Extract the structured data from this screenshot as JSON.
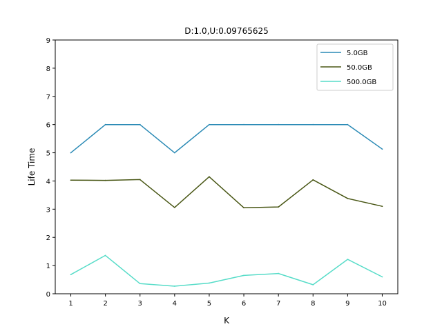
{
  "chart_data": {
    "type": "line",
    "title": "D:1.0,U:0.09765625",
    "xlabel": "K",
    "ylabel": "Life Time",
    "x": [
      1,
      2,
      3,
      4,
      5,
      6,
      7,
      8,
      9,
      10
    ],
    "xlim": [
      0.55,
      10.45
    ],
    "ylim": [
      0,
      9
    ],
    "yticks": [
      0,
      1,
      2,
      3,
      4,
      5,
      6,
      7,
      8,
      9
    ],
    "grid": false,
    "legend_position": "top-right",
    "series": [
      {
        "name": "5.0GB",
        "color": "#2a8ab5",
        "values": [
          5.0,
          6.0,
          6.0,
          5.0,
          6.0,
          6.0,
          6.0,
          6.0,
          6.0,
          5.13
        ]
      },
      {
        "name": "50.0GB",
        "color": "#485614",
        "values": [
          4.03,
          4.02,
          4.05,
          3.06,
          4.15,
          3.05,
          3.08,
          4.04,
          3.38,
          3.1
        ]
      },
      {
        "name": "500.0GB",
        "color": "#56dcc8",
        "values": [
          0.68,
          1.36,
          0.36,
          0.27,
          0.38,
          0.65,
          0.72,
          0.32,
          1.22,
          0.6
        ]
      }
    ]
  }
}
